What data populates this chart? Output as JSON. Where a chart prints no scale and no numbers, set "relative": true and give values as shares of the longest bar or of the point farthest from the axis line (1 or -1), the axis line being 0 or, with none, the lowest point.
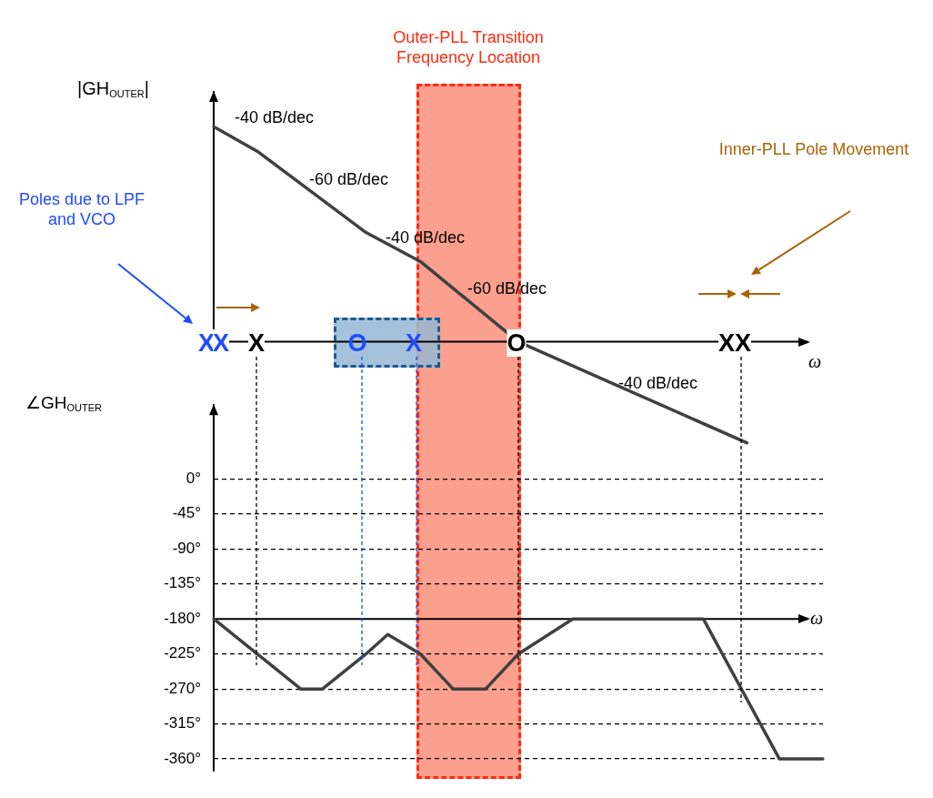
{
  "chart_data": [
    {
      "type": "line",
      "relative": true,
      "ylabel": "|GH$_{OUTER}$|",
      "xlabel": "ω",
      "tick_labels": false,
      "categories": [
        null,
        null,
        null,
        null,
        null,
        null,
        null,
        null,
        null,
        null,
        null,
        null,
        null,
        null,
        null,
        null,
        null,
        null,
        null,
        null,
        null,
        null,
        null,
        null,
        null,
        null,
        null,
        null,
        null,
        null,
        null,
        null,
        null,
        null,
        null,
        null,
        null,
        null,
        null,
        null,
        null,
        null,
        null,
        null,
        null,
        null,
        null,
        null,
        null,
        null,
        null,
        null,
        null,
        null,
        null,
        null,
        null
      ],
      "series": [
        {
          "color": "#404040",
          "values": [
            1,
            null,
            null,
            null,
            0.886,
            null,
            null,
            null,
            null,
            null,
            null,
            null,
            null,
            null,
            0.508,
            null,
            null,
            null,
            null,
            0.373,
            null,
            null,
            null,
            null,
            null,
            null,
            null,
            null,
            0,
            null,
            null,
            null,
            null,
            null,
            null,
            null,
            null,
            null,
            null,
            null,
            null,
            null,
            null,
            null,
            null,
            null,
            null,
            null,
            null,
            -0.47,
            null,
            null,
            null,
            null,
            null,
            null,
            null
          ]
        }
      ],
      "annotations": [
        "-40 dB/dec",
        "-60 dB/dec",
        "-40 dB/dec",
        "-60 dB/dec",
        "-40 dB/dec",
        "Poles due to LPF and VCO",
        "Inner-PLL Pole Movement",
        "Outer-PLL Transition Frequency Location",
        "X",
        "X",
        "X",
        "O",
        "X",
        "O",
        "X",
        "X"
      ]
    },
    {
      "type": "line",
      "ylabel": "∠GH$_{OUTER}$",
      "tick_labels": "y",
      "grid": "y",
      "ylim": [
        -376,
        96
      ],
      "categories": [
        null,
        null,
        null,
        null,
        null,
        null,
        null,
        null,
        null,
        null,
        null,
        null,
        null,
        null,
        null,
        null,
        null,
        null,
        null,
        null,
        null,
        null,
        null,
        null,
        null,
        null,
        null,
        null,
        null,
        null,
        null,
        null,
        null,
        null,
        null,
        null,
        null,
        null,
        null,
        null,
        null,
        null,
        null,
        null,
        null,
        null,
        null,
        null,
        null,
        null,
        null,
        null,
        null,
        null,
        null,
        null,
        null
      ],
      "yticks": [
        {
          "value": 0,
          "label": "0°"
        },
        {
          "value": -45,
          "label": "-45°"
        },
        {
          "value": -90,
          "label": "-90°"
        },
        {
          "value": -135,
          "label": "-135°"
        },
        {
          "value": -180,
          "label": "-180°"
        },
        {
          "value": -225,
          "label": "-225°"
        },
        {
          "value": -270,
          "label": "-270°"
        },
        {
          "value": -315,
          "label": "-315°"
        },
        {
          "value": -360,
          "label": "-360°"
        }
      ],
      "series": [
        {
          "color": "#404040",
          "values": [
            -180,
            null,
            null,
            null,
            -225,
            null,
            null,
            null,
            -270,
            null,
            -270,
            null,
            null,
            null,
            -225,
            null,
            -200,
            null,
            null,
            -225,
            null,
            null,
            -270,
            null,
            null,
            -270,
            null,
            null,
            -225,
            null,
            null,
            null,
            null,
            -180,
            null,
            null,
            null,
            null,
            null,
            null,
            null,
            null,
            null,
            null,
            null,
            -180,
            null,
            null,
            null,
            null,
            null,
            null,
            -360,
            null,
            null,
            null,
            -360
          ]
        }
      ],
      "ref_lines": [
        {
          "axis": "y",
          "value": -180,
          "label": "ω"
        }
      ]
    }
  ]
}
